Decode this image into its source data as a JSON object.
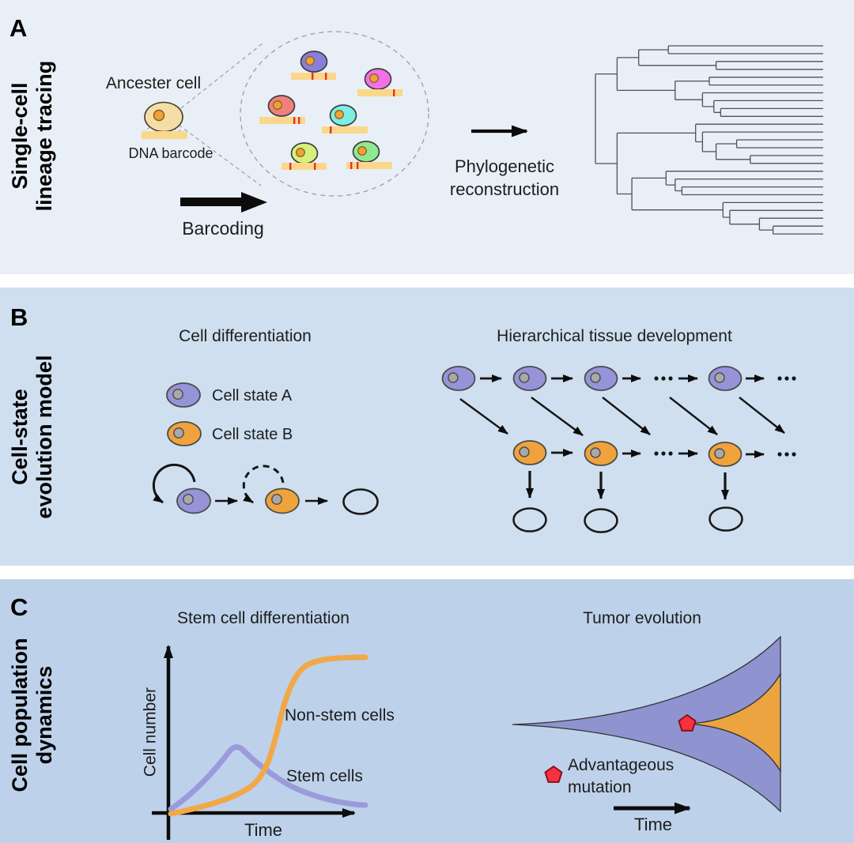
{
  "colors": {
    "panel-a-bg": "#e9eff7",
    "panel-b-bg": "#cfdff0",
    "panel-c-bg": "#bdd2ea",
    "text": "#1d1d1d",
    "cell-a": "#9793d9",
    "cell-b": "#f0a23c",
    "nucleus-gray": "#a9a9a9",
    "nucleus-orange": "#f0a235",
    "ancestor-fill": "#f6dda6",
    "barcode": "#fbd78b",
    "barcode-tick": "#e63228",
    "clone-purple": "#8a7edc",
    "clone-magenta": "#f470e8",
    "clone-salmon": "#f0807a",
    "clone-cyan": "#7deee6",
    "clone-green-yellow": "#d6f07d",
    "clone-green": "#8fe992",
    "tree-stroke": "#50505a",
    "dashed-gray": "#99a0aa",
    "arrow-black": "#0c0c0c",
    "curve-stem": "#9b9bdc",
    "curve-nonstem": "#f2a848",
    "tumor-purple": "#8f93d0",
    "tumor-orange": "#eba43f",
    "mutation-red": "#f5333f"
  },
  "panelA": {
    "letter": "A",
    "sidebar": [
      "Single-cell",
      "lineage tracing"
    ],
    "ancestor_label": "Ancester cell",
    "dna_label": "DNA barcode",
    "barcoding_label": "Barcoding",
    "phylo": [
      "Phylogenetic",
      "reconstruction"
    ],
    "tree": {
      "d": 0,
      "c": [
        {
          "d": 0.095,
          "c": [
            {
              "d": 0.19,
              "c": [
                {
                  "d": 0.32,
                  "c": [
                    {},
                    {}
                  ]
                },
                {
                  "d": 0.53,
                  "c": [
                    {},
                    {}
                  ]
                }
              ]
            },
            {
              "d": 0.35,
              "c": [
                {
                  "d": 0.5,
                  "c": [
                    {},
                    {}
                  ]
                },
                {
                  "d": 0.47,
                  "c": [
                    {},
                    {
                      "d": 0.52,
                      "c": [
                        {},
                        {
                          "d": 0.55,
                          "c": [
                            {},
                            {}
                          ]
                        }
                      ]
                    }
                  ]
                }
              ]
            }
          ]
        },
        {
          "d": 0.095,
          "c": [
            {
              "d": 0.44,
              "c": [
                {},
                {
                  "d": 0.47,
                  "c": [
                    {},
                    {
                      "d": 0.53,
                      "c": [
                        {
                          "d": 0.62,
                          "c": [
                            {},
                            {}
                          ]
                        },
                        {
                          "d": 0.68,
                          "c": [
                            {},
                            {}
                          ]
                        }
                      ]
                    }
                  ]
                }
              ]
            },
            {
              "d": 0.16,
              "c": [
                {
                  "d": 0.31,
                  "c": [
                    {},
                    {
                      "d": 0.35,
                      "c": [
                        {},
                        {
                          "d": 0.38,
                          "c": [
                            {},
                            {}
                          ]
                        }
                      ]
                    }
                  ]
                },
                {
                  "d": 0.56,
                  "c": [
                    {},
                    {
                      "d": 0.59,
                      "c": [
                        {},
                        {
                          "d": 0.72,
                          "c": [
                            {},
                            {
                              "d": 0.78,
                              "c": [
                                {},
                                {}
                              ]
                            }
                          ]
                        }
                      ]
                    }
                  ]
                }
              ]
            }
          ]
        }
      ]
    }
  },
  "panelB": {
    "letter": "B",
    "sidebar": [
      "Cell-state",
      "evolution model"
    ],
    "left_title": "Cell differentiation",
    "legend": [
      {
        "label": "Cell state A"
      },
      {
        "label": "Cell state B"
      }
    ],
    "right_title": "Hierarchical tissue development"
  },
  "panelC": {
    "letter": "C",
    "sidebar": [
      "Cell population",
      "dynamics"
    ],
    "left_title": "Stem cell differentiation",
    "ylabel": "Cell number",
    "xlabel": "Time",
    "curves": [
      {
        "name": "Non-stem cells"
      },
      {
        "name": "Stem cells"
      }
    ],
    "right_title": "Tumor evolution",
    "mutation_legend": [
      "Advantageous",
      "mutation"
    ],
    "time_label": "Time"
  },
  "chart_data": {
    "type": "line",
    "title": "Stem cell differentiation",
    "xlabel": "Time",
    "ylabel": "Cell number",
    "axes_quantitative": false,
    "series": [
      {
        "name": "Non-stem cells",
        "shape": "sigmoid growth saturating at a high plateau"
      },
      {
        "name": "Stem cells",
        "shape": "rises to an early transient peak then declines toward a low level"
      }
    ]
  }
}
